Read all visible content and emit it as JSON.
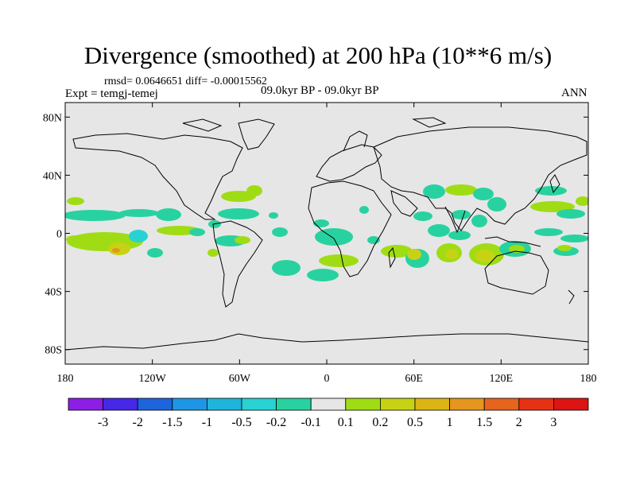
{
  "title": "Divergence (smoothed) at 200 hPa (10**6 m/s)",
  "stats": "rmsd= 0.0646651 diff= -0.00015562",
  "experiment": "Expt = temgj-temej",
  "period": "09.0kyr BP - 09.0kyr BP",
  "season": "ANN",
  "map": {
    "background_color": "#e6e6e6",
    "lat_range": [
      -90,
      90
    ],
    "lon_range": [
      -180,
      180
    ],
    "x_tick_labels": [
      "180",
      "120W",
      "60W",
      "0",
      "60E",
      "120E",
      "180"
    ],
    "y_tick_labels": [
      "80N",
      "40N",
      "0",
      "40S",
      "80S"
    ]
  },
  "colorbar": {
    "colors": [
      "#8c1ee6",
      "#4628e6",
      "#1e64dc",
      "#1e96e6",
      "#20b4dc",
      "#28d2d2",
      "#28d2a0",
      "#e6e6e6",
      "#a0dc14",
      "#c8d214",
      "#dcb414",
      "#e6961e",
      "#e6641e",
      "#e63214",
      "#dc1414"
    ],
    "labels": [
      "-3",
      "-2",
      "-1.5",
      "-1",
      "-0.5",
      "-0.2",
      "-0.1",
      "0.1",
      "0.2",
      "0.5",
      "1",
      "1.5",
      "2",
      "3"
    ]
  }
}
